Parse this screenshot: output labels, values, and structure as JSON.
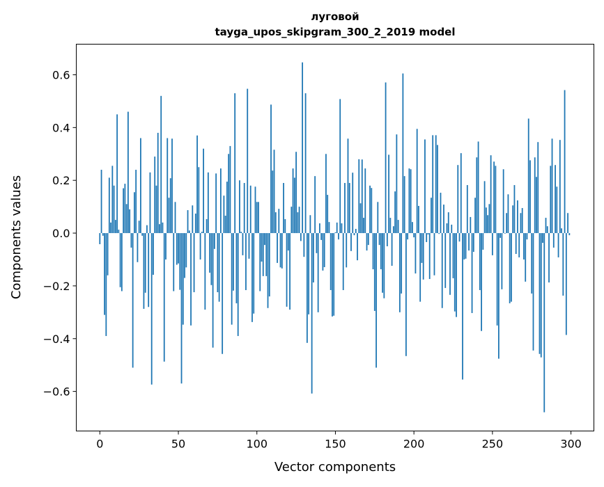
{
  "chart_data": {
    "type": "bar",
    "title": "луговой",
    "subtitle": "tayga_upos_skipgram_300_2_2019 model",
    "xlabel": "Vector components",
    "ylabel": "Components values",
    "xlim": [
      -15,
      314.6
    ],
    "ylim": [
      -0.75,
      0.716
    ],
    "xticks": [
      0,
      50,
      100,
      150,
      200,
      250,
      300
    ],
    "xtick_labels": [
      "0",
      "50",
      "100",
      "150",
      "200",
      "250",
      "300"
    ],
    "yticks": [
      -0.6,
      -0.4,
      -0.2,
      0.0,
      0.2,
      0.4,
      0.6
    ],
    "ytick_labels": [
      "−0.6",
      "−0.4",
      "−0.2",
      "0.0",
      "0.2",
      "0.4",
      "0.6"
    ],
    "grid": false,
    "bar_color": "#1f77b4",
    "values": [
      -0.042,
      0.24,
      -0.01,
      -0.31,
      -0.39,
      -0.16,
      0.21,
      0.04,
      0.255,
      0.18,
      0.05,
      0.45,
      0.013,
      -0.205,
      -0.22,
      0.17,
      0.187,
      0.11,
      0.46,
      0.09,
      -0.055,
      -0.51,
      0.155,
      0.24,
      -0.11,
      0.047,
      0.36,
      -0.01,
      -0.287,
      -0.226,
      0.03,
      -0.28,
      0.23,
      -0.574,
      -0.158,
      0.29,
      0.18,
      0.38,
      0.034,
      0.52,
      0.04,
      -0.487,
      -0.1,
      0.36,
      0.134,
      0.208,
      0.358,
      -0.22,
      0.118,
      -0.12,
      -0.115,
      -0.215,
      -0.57,
      -0.347,
      -0.17,
      -0.13,
      0.087,
      0.01,
      -0.35,
      0.105,
      -0.224,
      0.074,
      0.37,
      0.25,
      -0.1,
      0.005,
      0.32,
      -0.29,
      0.053,
      0.23,
      -0.15,
      -0.197,
      -0.434,
      -0.06,
      0.226,
      -0.224,
      -0.26,
      0.245,
      -0.458,
      0.142,
      0.066,
      0.195,
      0.3,
      0.33,
      -0.347,
      -0.218,
      0.53,
      -0.266,
      -0.39,
      0.2,
      0.005,
      -0.084,
      0.19,
      -0.216,
      0.547,
      -0.097,
      0.18,
      -0.337,
      -0.305,
      0.176,
      0.118,
      0.118,
      -0.22,
      -0.108,
      -0.163,
      -0.045,
      -0.163,
      -0.284,
      -0.24,
      0.487,
      0.237,
      0.316,
      0.079,
      -0.113,
      0.092,
      -0.13,
      -0.134,
      0.19,
      0.053,
      -0.279,
      -0.066,
      -0.29,
      0.1,
      0.245,
      0.21,
      0.308,
      0.079,
      0.1,
      -0.03,
      0.647,
      -0.09,
      0.53,
      -0.416,
      -0.308,
      0.068,
      -0.608,
      -0.187,
      0.216,
      -0.076,
      -0.3,
      0.037,
      -0.026,
      -0.142,
      -0.129,
      0.3,
      0.145,
      0.042,
      -0.216,
      -0.316,
      -0.313,
      0.003,
      0.04,
      -0.024,
      0.508,
      0.037,
      -0.216,
      0.19,
      -0.13,
      0.358,
      0.19,
      -0.068,
      0.229,
      -0.008,
      0.016,
      -0.103,
      0.28,
      0.113,
      0.279,
      0.058,
      0.245,
      -0.066,
      -0.045,
      0.18,
      0.171,
      -0.137,
      -0.295,
      -0.51,
      0.118,
      -0.045,
      -0.137,
      -0.226,
      -0.247,
      0.571,
      -0.05,
      0.297,
      0.058,
      -0.124,
      0.026,
      0.158,
      0.374,
      0.05,
      -0.3,
      -0.229,
      0.605,
      0.216,
      -0.466,
      -0.024,
      0.245,
      0.242,
      0.042,
      -0.016,
      -0.153,
      0.395,
      0.103,
      -0.26,
      -0.113,
      -0.176,
      0.355,
      -0.034,
      -0.005,
      -0.174,
      0.134,
      0.371,
      -0.16,
      0.371,
      0.334,
      -0.003,
      0.153,
      -0.284,
      0.108,
      -0.208,
      0.037,
      0.079,
      -0.234,
      0.032,
      -0.171,
      -0.297,
      -0.318,
      0.258,
      -0.032,
      0.303,
      -0.555,
      -0.1,
      -0.097,
      0.182,
      -0.066,
      0.061,
      -0.303,
      -0.071,
      0.134,
      0.287,
      0.347,
      -0.216,
      -0.371,
      -0.063,
      0.197,
      0.097,
      0.068,
      0.11,
      0.295,
      -0.084,
      0.271,
      0.255,
      -0.35,
      -0.476,
      -0.018,
      -0.213,
      0.242,
      -0.002,
      0.076,
      0.147,
      -0.266,
      -0.26,
      0.105,
      0.182,
      -0.079,
      0.124,
      -0.092,
      0.076,
      0.095,
      -0.1,
      -0.184,
      -0.024,
      0.434,
      0.276,
      -0.229,
      -0.445,
      0.287,
      0.213,
      0.345,
      -0.458,
      -0.471,
      -0.037,
      -0.679,
      0.058,
      0.026,
      -0.187,
      0.255,
      0.358,
      -0.055,
      0.258,
      0.176,
      -0.092,
      0.353,
      0.018,
      -0.237,
      0.542,
      -0.386,
      0.076,
      -0.008
    ]
  }
}
